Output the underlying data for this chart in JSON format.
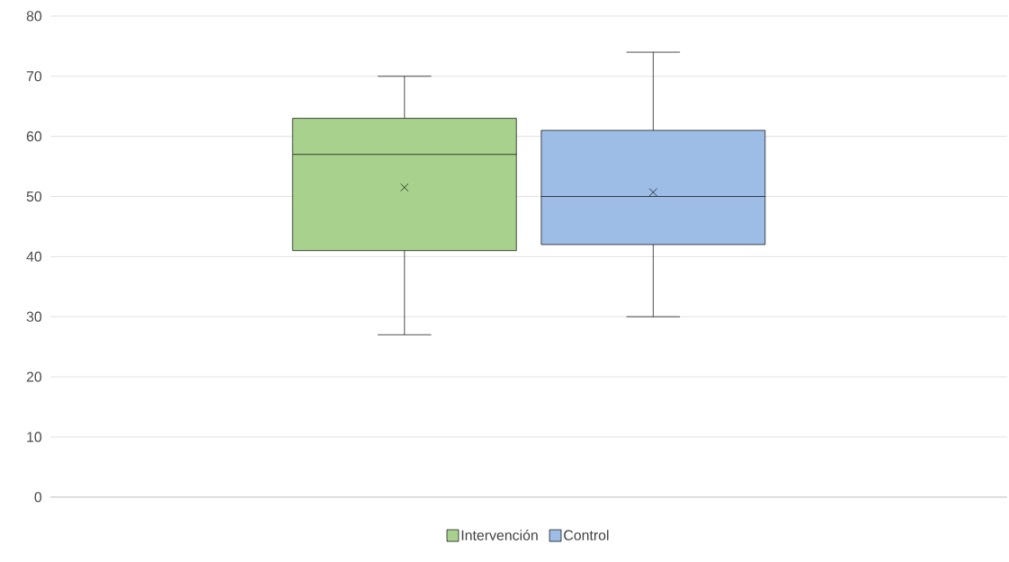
{
  "chart_data": {
    "type": "box",
    "categories": [
      null
    ],
    "series": [
      {
        "name": "Intervención",
        "color": "#a9d18e",
        "boxes": [
          {
            "low": 27,
            "q1": 41,
            "median": 57,
            "q3": 63,
            "high": 70,
            "mean": 51.5
          }
        ]
      },
      {
        "name": "Control",
        "color": "#9dbde6",
        "boxes": [
          {
            "low": 30,
            "q1": 42,
            "median": 50,
            "q3": 61,
            "high": 74,
            "mean": 50.7
          }
        ]
      }
    ],
    "ylim": [
      0,
      80
    ],
    "yticks": [
      0,
      10,
      20,
      30,
      40,
      50,
      60,
      70,
      80
    ],
    "grid": "y",
    "legend": "bottom"
  }
}
